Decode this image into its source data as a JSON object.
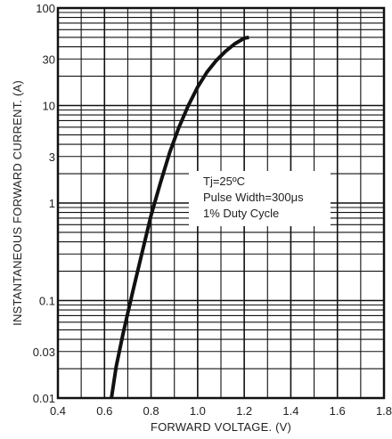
{
  "chart_data": {
    "type": "line",
    "title": "",
    "xlabel": "FORWARD VOLTAGE. (V)",
    "ylabel": "INSTANTANEOUS FORWARD CURRENT. (A)",
    "x_scale": "linear",
    "y_scale": "log",
    "xlim": [
      0.4,
      1.8
    ],
    "ylim": [
      0.01,
      100
    ],
    "x_ticks": [
      0.4,
      0.6,
      0.8,
      1.0,
      1.2,
      1.4,
      1.6,
      1.8
    ],
    "x_tick_labels": [
      "0.4",
      "0.6",
      "0.8",
      "1.0",
      "1.2",
      "1.4",
      "1.6",
      "1.8"
    ],
    "y_ticks": [
      0.01,
      0.03,
      0.1,
      1,
      3,
      10,
      30,
      100
    ],
    "y_tick_labels": [
      "0.01",
      "0.03",
      "0.1",
      "1",
      "3",
      "10",
      "30",
      "100"
    ],
    "grid": true,
    "series": [
      {
        "x": [
          0.63,
          0.65,
          0.68,
          0.72,
          0.76,
          0.8,
          0.84,
          0.88,
          0.92,
          0.96,
          1.0,
          1.04,
          1.08,
          1.12,
          1.16,
          1.2,
          1.22
        ],
        "y": [
          0.01,
          0.021,
          0.046,
          0.12,
          0.3,
          0.75,
          1.6,
          3.3,
          6.0,
          10.0,
          15.5,
          22.0,
          29.0,
          36.0,
          43.0,
          49.0,
          50.0
        ]
      }
    ],
    "annotations": [
      "Tj=25ºC",
      "Pulse Width=300μs",
      "1% Duty Cycle"
    ],
    "colors": {
      "line": "#111111",
      "grid": "#111111",
      "text": "#222222"
    }
  }
}
